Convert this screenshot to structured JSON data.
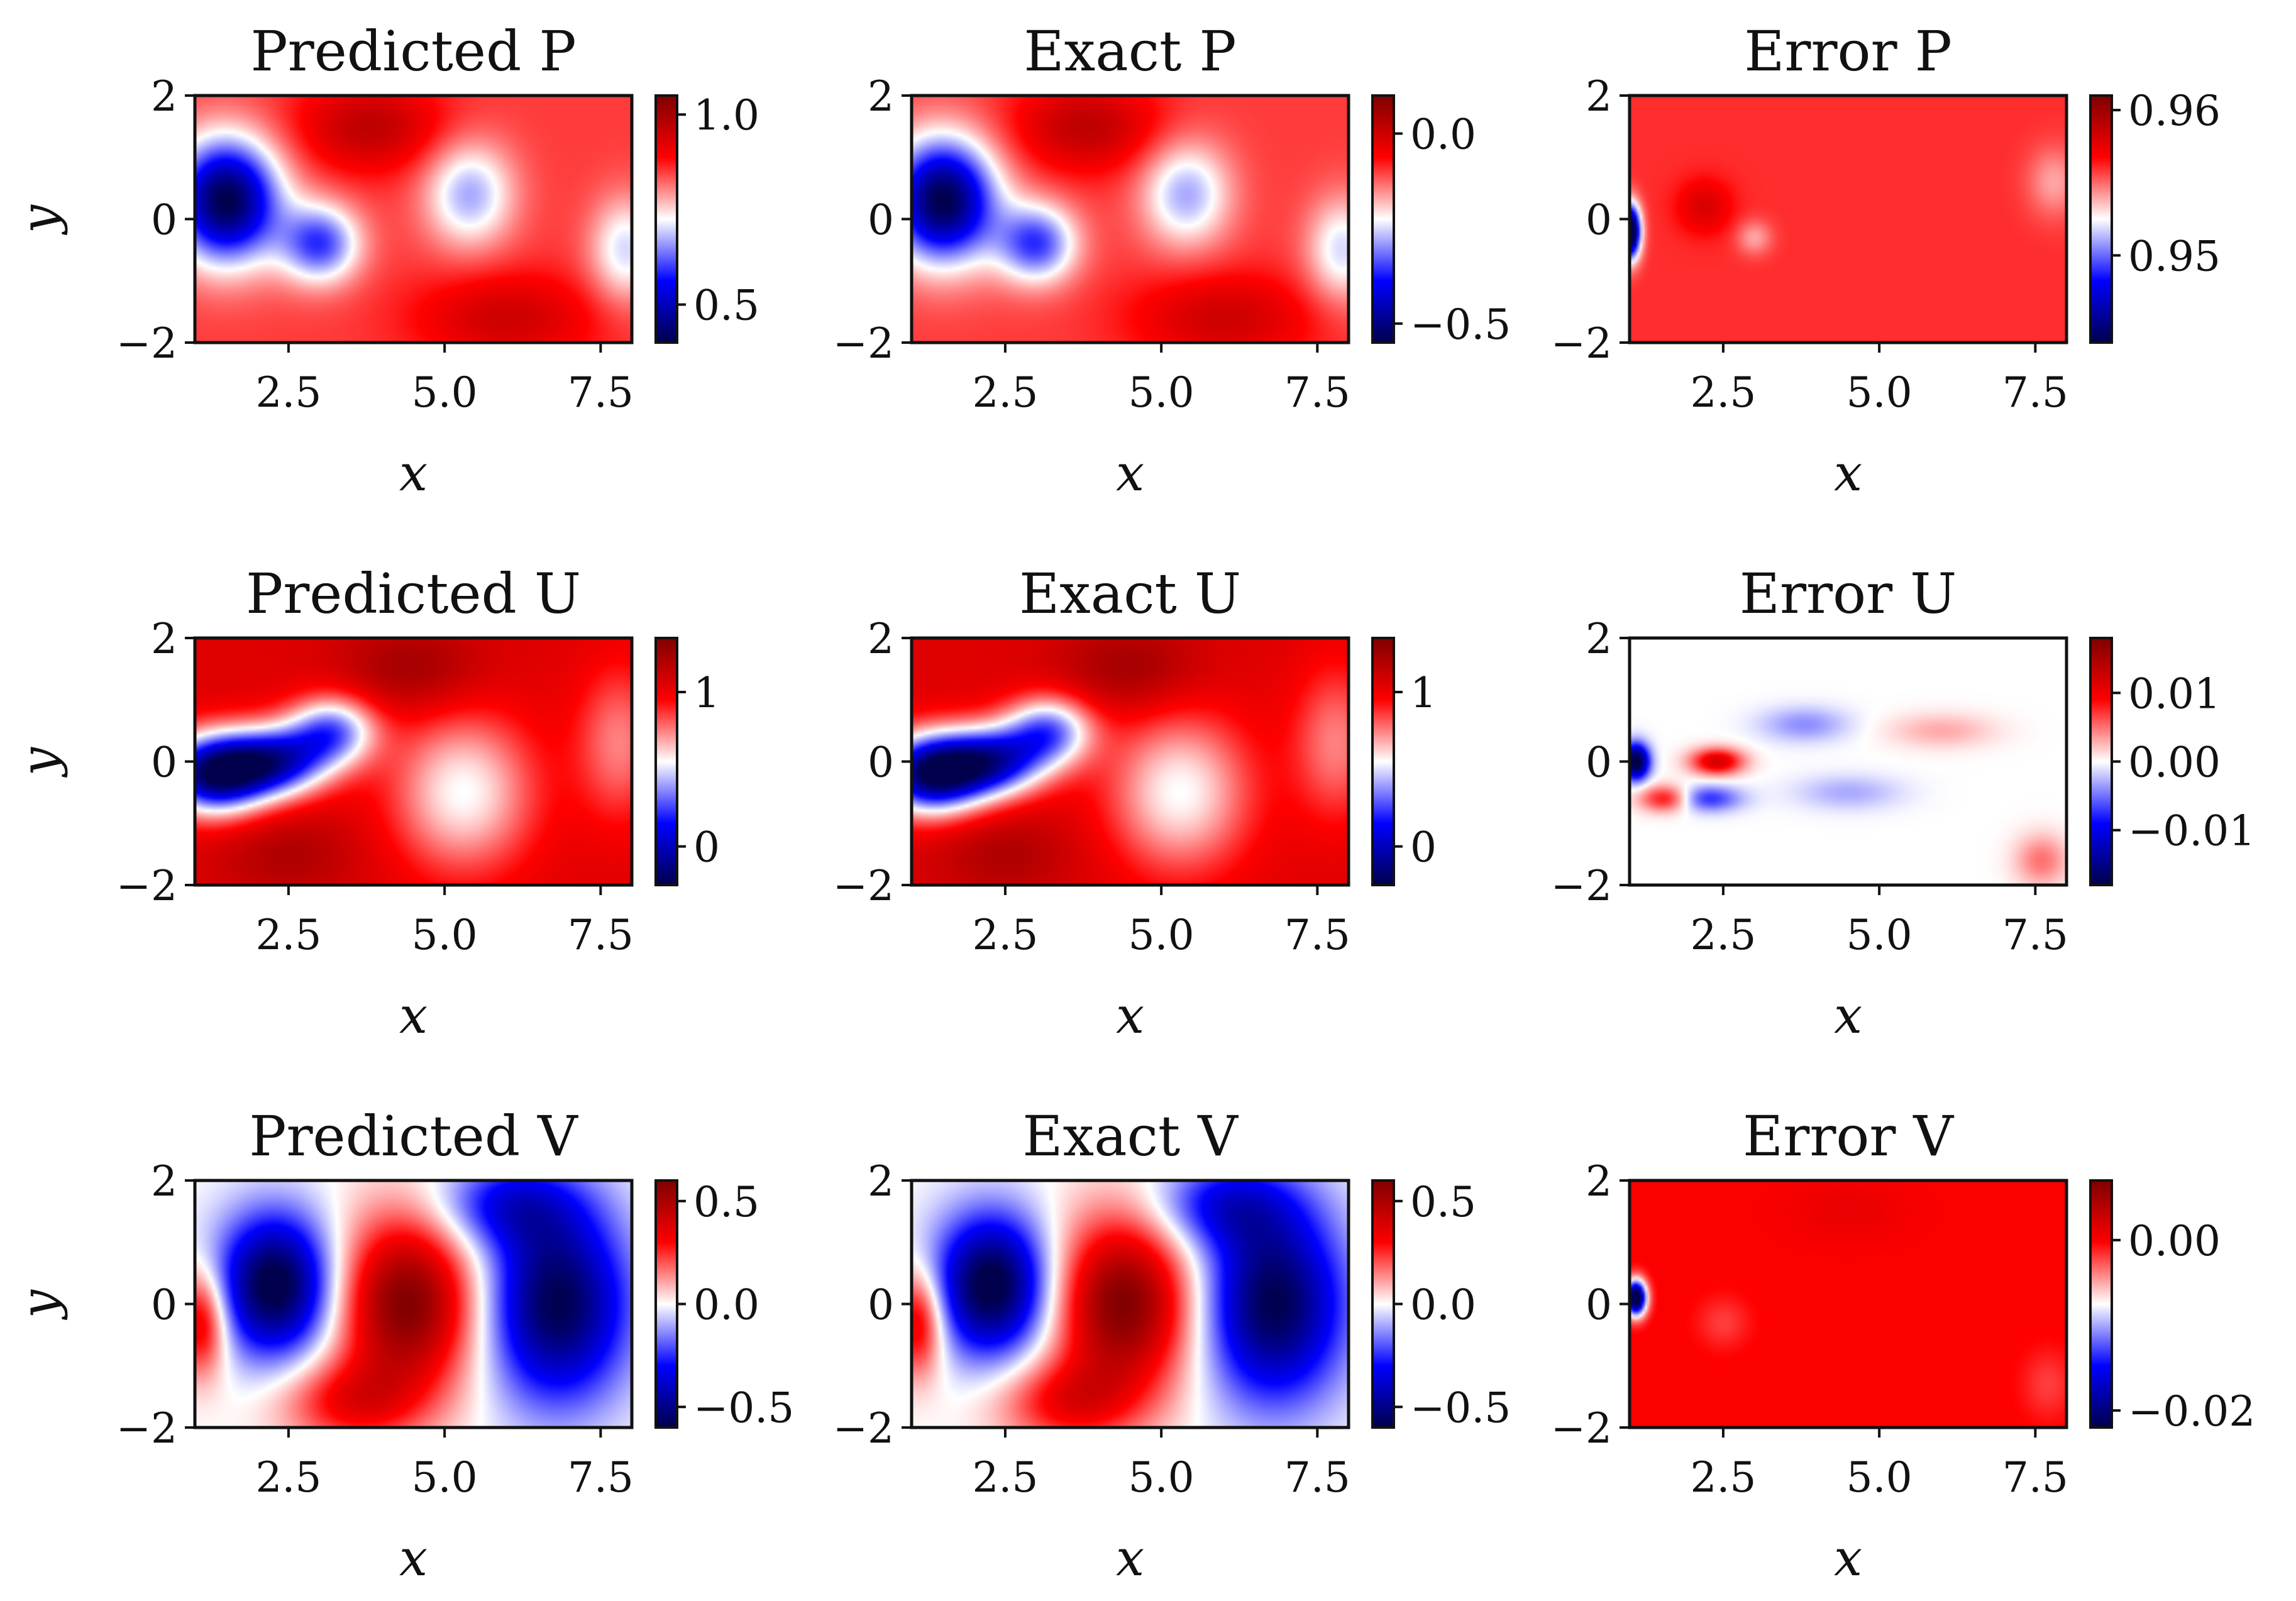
{
  "colors": {
    "colormap": "seismic",
    "low": "#00004c",
    "mid": "#ffffff",
    "high": "#7f0000",
    "axis": "#111111"
  },
  "chart_data": [
    {
      "type": "heatmap",
      "title": "Predicted P",
      "xlabel": "x",
      "ylabel": "y",
      "xlim": [
        1,
        8
      ],
      "ylim": [
        -2,
        2
      ],
      "xticks": [
        "2.5",
        "5.0",
        "7.5"
      ],
      "yticks": [
        "2",
        "0",
        "−2"
      ],
      "colorbar": {
        "ticks": [
          "1.0",
          "0.5"
        ],
        "tick_values": [
          1.0,
          0.5
        ],
        "range": [
          0.4,
          1.05
        ]
      },
      "field": {
        "base": 0.85,
        "features": [
          {
            "x": 1.5,
            "y": 0.3,
            "sx": 0.6,
            "sy": 0.7,
            "a": -0.45
          },
          {
            "x": 3.0,
            "y": -0.4,
            "sx": 0.45,
            "sy": 0.45,
            "a": -0.25
          },
          {
            "x": 5.4,
            "y": 0.4,
            "sx": 0.5,
            "sy": 0.6,
            "a": -0.18
          },
          {
            "x": 7.9,
            "y": -0.5,
            "sx": 0.4,
            "sy": 0.6,
            "a": -0.15
          },
          {
            "x": 3.8,
            "y": 1.5,
            "sx": 0.8,
            "sy": 0.5,
            "a": 0.12
          },
          {
            "x": 6.0,
            "y": -1.6,
            "sx": 1.0,
            "sy": 0.5,
            "a": 0.1
          }
        ]
      }
    },
    {
      "type": "heatmap",
      "title": "Exact P",
      "xlabel": "x",
      "ylabel": "",
      "xlim": [
        1,
        8
      ],
      "ylim": [
        -2,
        2
      ],
      "xticks": [
        "2.5",
        "5.0",
        "7.5"
      ],
      "yticks": [
        "2",
        "0",
        "−2"
      ],
      "colorbar": {
        "ticks": [
          "0.0",
          "−0.5"
        ],
        "tick_values": [
          0.0,
          -0.5
        ],
        "range": [
          -0.55,
          0.1
        ]
      },
      "field": {
        "base": -0.1,
        "features": [
          {
            "x": 1.5,
            "y": 0.3,
            "sx": 0.6,
            "sy": 0.7,
            "a": -0.45
          },
          {
            "x": 3.0,
            "y": -0.4,
            "sx": 0.45,
            "sy": 0.45,
            "a": -0.25
          },
          {
            "x": 5.4,
            "y": 0.4,
            "sx": 0.5,
            "sy": 0.6,
            "a": -0.18
          },
          {
            "x": 7.9,
            "y": -0.5,
            "sx": 0.4,
            "sy": 0.6,
            "a": -0.15
          },
          {
            "x": 3.8,
            "y": 1.5,
            "sx": 0.8,
            "sy": 0.5,
            "a": 0.12
          },
          {
            "x": 6.0,
            "y": -1.6,
            "sx": 1.0,
            "sy": 0.5,
            "a": 0.1
          }
        ]
      }
    },
    {
      "type": "heatmap",
      "title": "Error P",
      "xlabel": "x",
      "ylabel": "",
      "xlim": [
        1,
        8
      ],
      "ylim": [
        -2,
        2
      ],
      "xticks": [
        "2.5",
        "5.0",
        "7.5"
      ],
      "yticks": [
        "2",
        "0",
        "−2"
      ],
      "colorbar": {
        "ticks": [
          "0.96",
          "0.95"
        ],
        "tick_values": [
          0.96,
          0.95
        ],
        "range": [
          0.944,
          0.961
        ]
      },
      "field": {
        "base": 0.956,
        "features": [
          {
            "x": 1.0,
            "y": -0.2,
            "sx": 0.12,
            "sy": 0.3,
            "a": -0.015
          },
          {
            "x": 2.2,
            "y": 0.2,
            "sx": 0.3,
            "sy": 0.3,
            "a": 0.002
          },
          {
            "x": 3.0,
            "y": -0.3,
            "sx": 0.2,
            "sy": 0.2,
            "a": -0.002
          },
          {
            "x": 7.8,
            "y": 0.6,
            "sx": 0.3,
            "sy": 0.4,
            "a": -0.002
          }
        ]
      }
    },
    {
      "type": "heatmap",
      "title": "Predicted U",
      "xlabel": "x",
      "ylabel": "y",
      "xlim": [
        1,
        8
      ],
      "ylim": [
        -2,
        2
      ],
      "xticks": [
        "2.5",
        "5.0",
        "7.5"
      ],
      "yticks": [
        "2",
        "0",
        "−2"
      ],
      "colorbar": {
        "ticks": [
          "1",
          "0"
        ],
        "tick_values": [
          1,
          0
        ],
        "range": [
          -0.25,
          1.35
        ]
      },
      "field": {
        "base": 1.05,
        "features": [
          {
            "x": 1.3,
            "y": -0.2,
            "sx": 0.6,
            "sy": 0.45,
            "a": -1.2
          },
          {
            "x": 2.3,
            "y": 0.0,
            "sx": 0.6,
            "sy": 0.4,
            "a": -0.9
          },
          {
            "x": 3.2,
            "y": 0.5,
            "sx": 0.5,
            "sy": 0.4,
            "a": -0.7
          },
          {
            "x": 5.3,
            "y": -0.5,
            "sx": 0.8,
            "sy": 0.9,
            "a": -0.5
          },
          {
            "x": 7.8,
            "y": 0.3,
            "sx": 0.5,
            "sy": 0.9,
            "a": -0.3
          },
          {
            "x": 4.5,
            "y": 1.5,
            "sx": 0.8,
            "sy": 0.5,
            "a": 0.2
          },
          {
            "x": 2.5,
            "y": -1.5,
            "sx": 0.8,
            "sy": 0.5,
            "a": 0.15
          }
        ]
      }
    },
    {
      "type": "heatmap",
      "title": "Exact U",
      "xlabel": "x",
      "ylabel": "",
      "xlim": [
        1,
        8
      ],
      "ylim": [
        -2,
        2
      ],
      "xticks": [
        "2.5",
        "5.0",
        "7.5"
      ],
      "yticks": [
        "2",
        "0",
        "−2"
      ],
      "colorbar": {
        "ticks": [
          "1",
          "0"
        ],
        "tick_values": [
          1,
          0
        ],
        "range": [
          -0.25,
          1.35
        ]
      },
      "field": {
        "base": 1.05,
        "features": [
          {
            "x": 1.3,
            "y": -0.2,
            "sx": 0.6,
            "sy": 0.45,
            "a": -1.2
          },
          {
            "x": 2.3,
            "y": 0.0,
            "sx": 0.6,
            "sy": 0.4,
            "a": -0.9
          },
          {
            "x": 3.2,
            "y": 0.5,
            "sx": 0.5,
            "sy": 0.4,
            "a": -0.7
          },
          {
            "x": 5.3,
            "y": -0.5,
            "sx": 0.8,
            "sy": 0.9,
            "a": -0.5
          },
          {
            "x": 7.8,
            "y": 0.3,
            "sx": 0.5,
            "sy": 0.9,
            "a": -0.3
          },
          {
            "x": 4.5,
            "y": 1.5,
            "sx": 0.8,
            "sy": 0.5,
            "a": 0.2
          },
          {
            "x": 2.5,
            "y": -1.5,
            "sx": 0.8,
            "sy": 0.5,
            "a": 0.15
          }
        ]
      }
    },
    {
      "type": "heatmap",
      "title": "Error U",
      "xlabel": "x",
      "ylabel": "",
      "xlim": [
        1,
        8
      ],
      "ylim": [
        -2,
        2
      ],
      "xticks": [
        "2.5",
        "5.0",
        "7.5"
      ],
      "yticks": [
        "2",
        "0",
        "−2"
      ],
      "colorbar": {
        "ticks": [
          "0.01",
          "0.00",
          "−0.01"
        ],
        "tick_values": [
          0.01,
          0.0,
          -0.01
        ],
        "range": [
          -0.018,
          0.018
        ]
      },
      "field": {
        "base": 0.0,
        "features": [
          {
            "x": 1.1,
            "y": 0.0,
            "sx": 0.15,
            "sy": 0.2,
            "a": -0.02
          },
          {
            "x": 2.4,
            "y": 0.0,
            "sx": 0.3,
            "sy": 0.15,
            "a": 0.012
          },
          {
            "x": 1.6,
            "y": -0.6,
            "sx": 0.3,
            "sy": 0.15,
            "a": 0.01
          },
          {
            "x": 2.2,
            "y": -0.6,
            "sx": 0.4,
            "sy": 0.15,
            "a": -0.008
          },
          {
            "x": 3.8,
            "y": 0.6,
            "sx": 0.5,
            "sy": 0.2,
            "a": -0.004
          },
          {
            "x": 4.5,
            "y": -0.5,
            "sx": 0.6,
            "sy": 0.2,
            "a": -0.003
          },
          {
            "x": 6.0,
            "y": 0.5,
            "sx": 0.6,
            "sy": 0.2,
            "a": 0.003
          },
          {
            "x": 7.6,
            "y": -1.6,
            "sx": 0.3,
            "sy": 0.3,
            "a": 0.005
          }
        ]
      }
    },
    {
      "type": "heatmap",
      "title": "Predicted V",
      "xlabel": "x",
      "ylabel": "y",
      "xlim": [
        1,
        8
      ],
      "ylim": [
        -2,
        2
      ],
      "xticks": [
        "2.5",
        "5.0",
        "7.5"
      ],
      "yticks": [
        "2",
        "0",
        "−2"
      ],
      "colorbar": {
        "ticks": [
          "0.5",
          "0.0",
          "−0.5"
        ],
        "tick_values": [
          0.5,
          0.0,
          -0.5
        ],
        "range": [
          -0.6,
          0.6
        ]
      },
      "field": {
        "base": 0.0,
        "features": [
          {
            "x": 2.3,
            "y": 0.3,
            "sx": 0.65,
            "sy": 0.8,
            "a": -0.65
          },
          {
            "x": 1.1,
            "y": -0.3,
            "sx": 0.3,
            "sy": 0.6,
            "a": 0.4
          },
          {
            "x": 4.4,
            "y": 0.0,
            "sx": 0.8,
            "sy": 1.0,
            "a": 0.6
          },
          {
            "x": 3.5,
            "y": -1.6,
            "sx": 0.8,
            "sy": 0.5,
            "a": 0.3
          },
          {
            "x": 6.8,
            "y": 0.0,
            "sx": 0.8,
            "sy": 1.1,
            "a": -0.6
          },
          {
            "x": 6.0,
            "y": 1.6,
            "sx": 0.8,
            "sy": 0.5,
            "a": -0.3
          }
        ]
      }
    },
    {
      "type": "heatmap",
      "title": "Exact V",
      "xlabel": "x",
      "ylabel": "",
      "xlim": [
        1,
        8
      ],
      "ylim": [
        -2,
        2
      ],
      "xticks": [
        "2.5",
        "5.0",
        "7.5"
      ],
      "yticks": [
        "2",
        "0",
        "−2"
      ],
      "colorbar": {
        "ticks": [
          "0.5",
          "0.0",
          "−0.5"
        ],
        "tick_values": [
          0.5,
          0.0,
          -0.5
        ],
        "range": [
          -0.6,
          0.6
        ]
      },
      "field": {
        "base": 0.0,
        "features": [
          {
            "x": 2.3,
            "y": 0.3,
            "sx": 0.65,
            "sy": 0.8,
            "a": -0.65
          },
          {
            "x": 1.1,
            "y": -0.3,
            "sx": 0.3,
            "sy": 0.6,
            "a": 0.4
          },
          {
            "x": 4.4,
            "y": 0.0,
            "sx": 0.8,
            "sy": 1.0,
            "a": 0.6
          },
          {
            "x": 3.5,
            "y": -1.6,
            "sx": 0.8,
            "sy": 0.5,
            "a": 0.3
          },
          {
            "x": 6.8,
            "y": 0.0,
            "sx": 0.8,
            "sy": 1.1,
            "a": -0.6
          },
          {
            "x": 6.0,
            "y": 1.6,
            "sx": 0.8,
            "sy": 0.5,
            "a": -0.3
          }
        ]
      }
    },
    {
      "type": "heatmap",
      "title": "Error V",
      "xlabel": "x",
      "ylabel": "",
      "xlim": [
        1,
        8
      ],
      "ylim": [
        -2,
        2
      ],
      "xticks": [
        "2.5",
        "5.0",
        "7.5"
      ],
      "yticks": [
        "2",
        "0",
        "−2"
      ],
      "colorbar": {
        "ticks": [
          "0.00",
          "−0.02"
        ],
        "tick_values": [
          0.0,
          -0.02
        ],
        "range": [
          -0.022,
          0.007
        ]
      },
      "field": {
        "base": 0.0,
        "features": [
          {
            "x": 1.1,
            "y": 0.1,
            "sx": 0.12,
            "sy": 0.2,
            "a": -0.025
          },
          {
            "x": 2.5,
            "y": -0.3,
            "sx": 0.3,
            "sy": 0.3,
            "a": -0.002
          },
          {
            "x": 7.7,
            "y": -1.3,
            "sx": 0.3,
            "sy": 0.4,
            "a": -0.002
          },
          {
            "x": 4.5,
            "y": 1.5,
            "sx": 0.6,
            "sy": 0.3,
            "a": 0.001
          }
        ]
      }
    }
  ]
}
